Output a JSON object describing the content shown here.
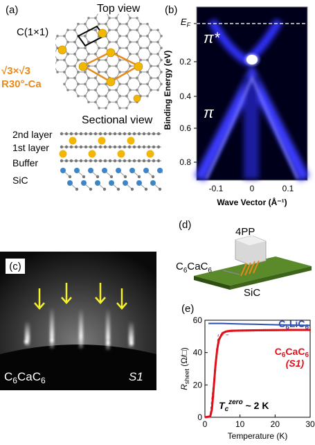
{
  "panels": {
    "a": {
      "label": "(a)",
      "top_view": "Top view",
      "cell_1x1": "C(1×1)",
      "cell_r3_line1": "√3×√3",
      "cell_r3_line2": "R30°-Ca",
      "sectional_view": "Sectional view",
      "layers": [
        "2nd layer",
        "1st layer",
        "Buffer",
        "SiC"
      ],
      "colors": {
        "carbon": "#8a8a8a",
        "calcium": "#f2b705",
        "silicon": "#3d86c6",
        "highlight": "#e88a1a"
      }
    },
    "b": {
      "label": "(b)",
      "fermi": "E",
      "fermi_sub": "F",
      "pi_star": "π*",
      "pi": "π",
      "ylabel": "Binding Energy (eV)",
      "xlabel": "Wave Vector (Å⁻¹)",
      "yticks": [
        "0",
        "0.2",
        "0.4",
        "0.6",
        "0.8"
      ],
      "xticks": [
        "-0.1",
        "0",
        "0.1"
      ]
    },
    "c": {
      "label": "(c)",
      "sample": "C",
      "sample_sub1": "6",
      "sample_mid": "CaC",
      "sample_sub2": "6",
      "id": "S1"
    },
    "d": {
      "label": "(d)",
      "probe": "4PP",
      "sample": "C",
      "sample_sub1": "6",
      "sample_mid": "CaC",
      "sample_sub2": "6",
      "substrate": "SiC"
    },
    "e": {
      "label": "(e)",
      "tc_text": "T",
      "tc_sub": "c",
      "tc_sup": "zero",
      "tc_value": " ~ 2 K"
    }
  },
  "chart_data": {
    "type": "line",
    "xlabel": "Temperature (K)",
    "ylabel": "R_sheet (Ω/□)",
    "xlim": [
      0,
      30
    ],
    "ylim": [
      0,
      60
    ],
    "xticks": [
      0,
      10,
      20,
      30
    ],
    "yticks": [
      0,
      20,
      40,
      60
    ],
    "series": [
      {
        "name": "C6LiC6",
        "color": "#2b4fb0",
        "x": [
          1,
          5,
          10,
          15,
          20,
          25,
          30
        ],
        "y": [
          58,
          58,
          57.7,
          57.5,
          57.2,
          57,
          56.8
        ]
      },
      {
        "name": "C6CaC6 (S1)",
        "color": "#e0101a",
        "x": [
          0,
          1.5,
          2,
          2.5,
          3,
          3.5,
          4,
          5,
          6,
          7,
          8,
          10,
          15,
          20,
          25,
          30
        ],
        "y": [
          0,
          0.5,
          5,
          18,
          32,
          42,
          48,
          52,
          53,
          53.4,
          53.5,
          53.6,
          53.8,
          53.9,
          54,
          54
        ]
      }
    ],
    "legend": [
      {
        "main": "C",
        "sub1": "6",
        "mid": "LiC",
        "sub2": "6",
        "extra": ""
      },
      {
        "main": "C",
        "sub1": "6",
        "mid": "CaC",
        "sub2": "6",
        "extra": "(S1)"
      }
    ]
  }
}
